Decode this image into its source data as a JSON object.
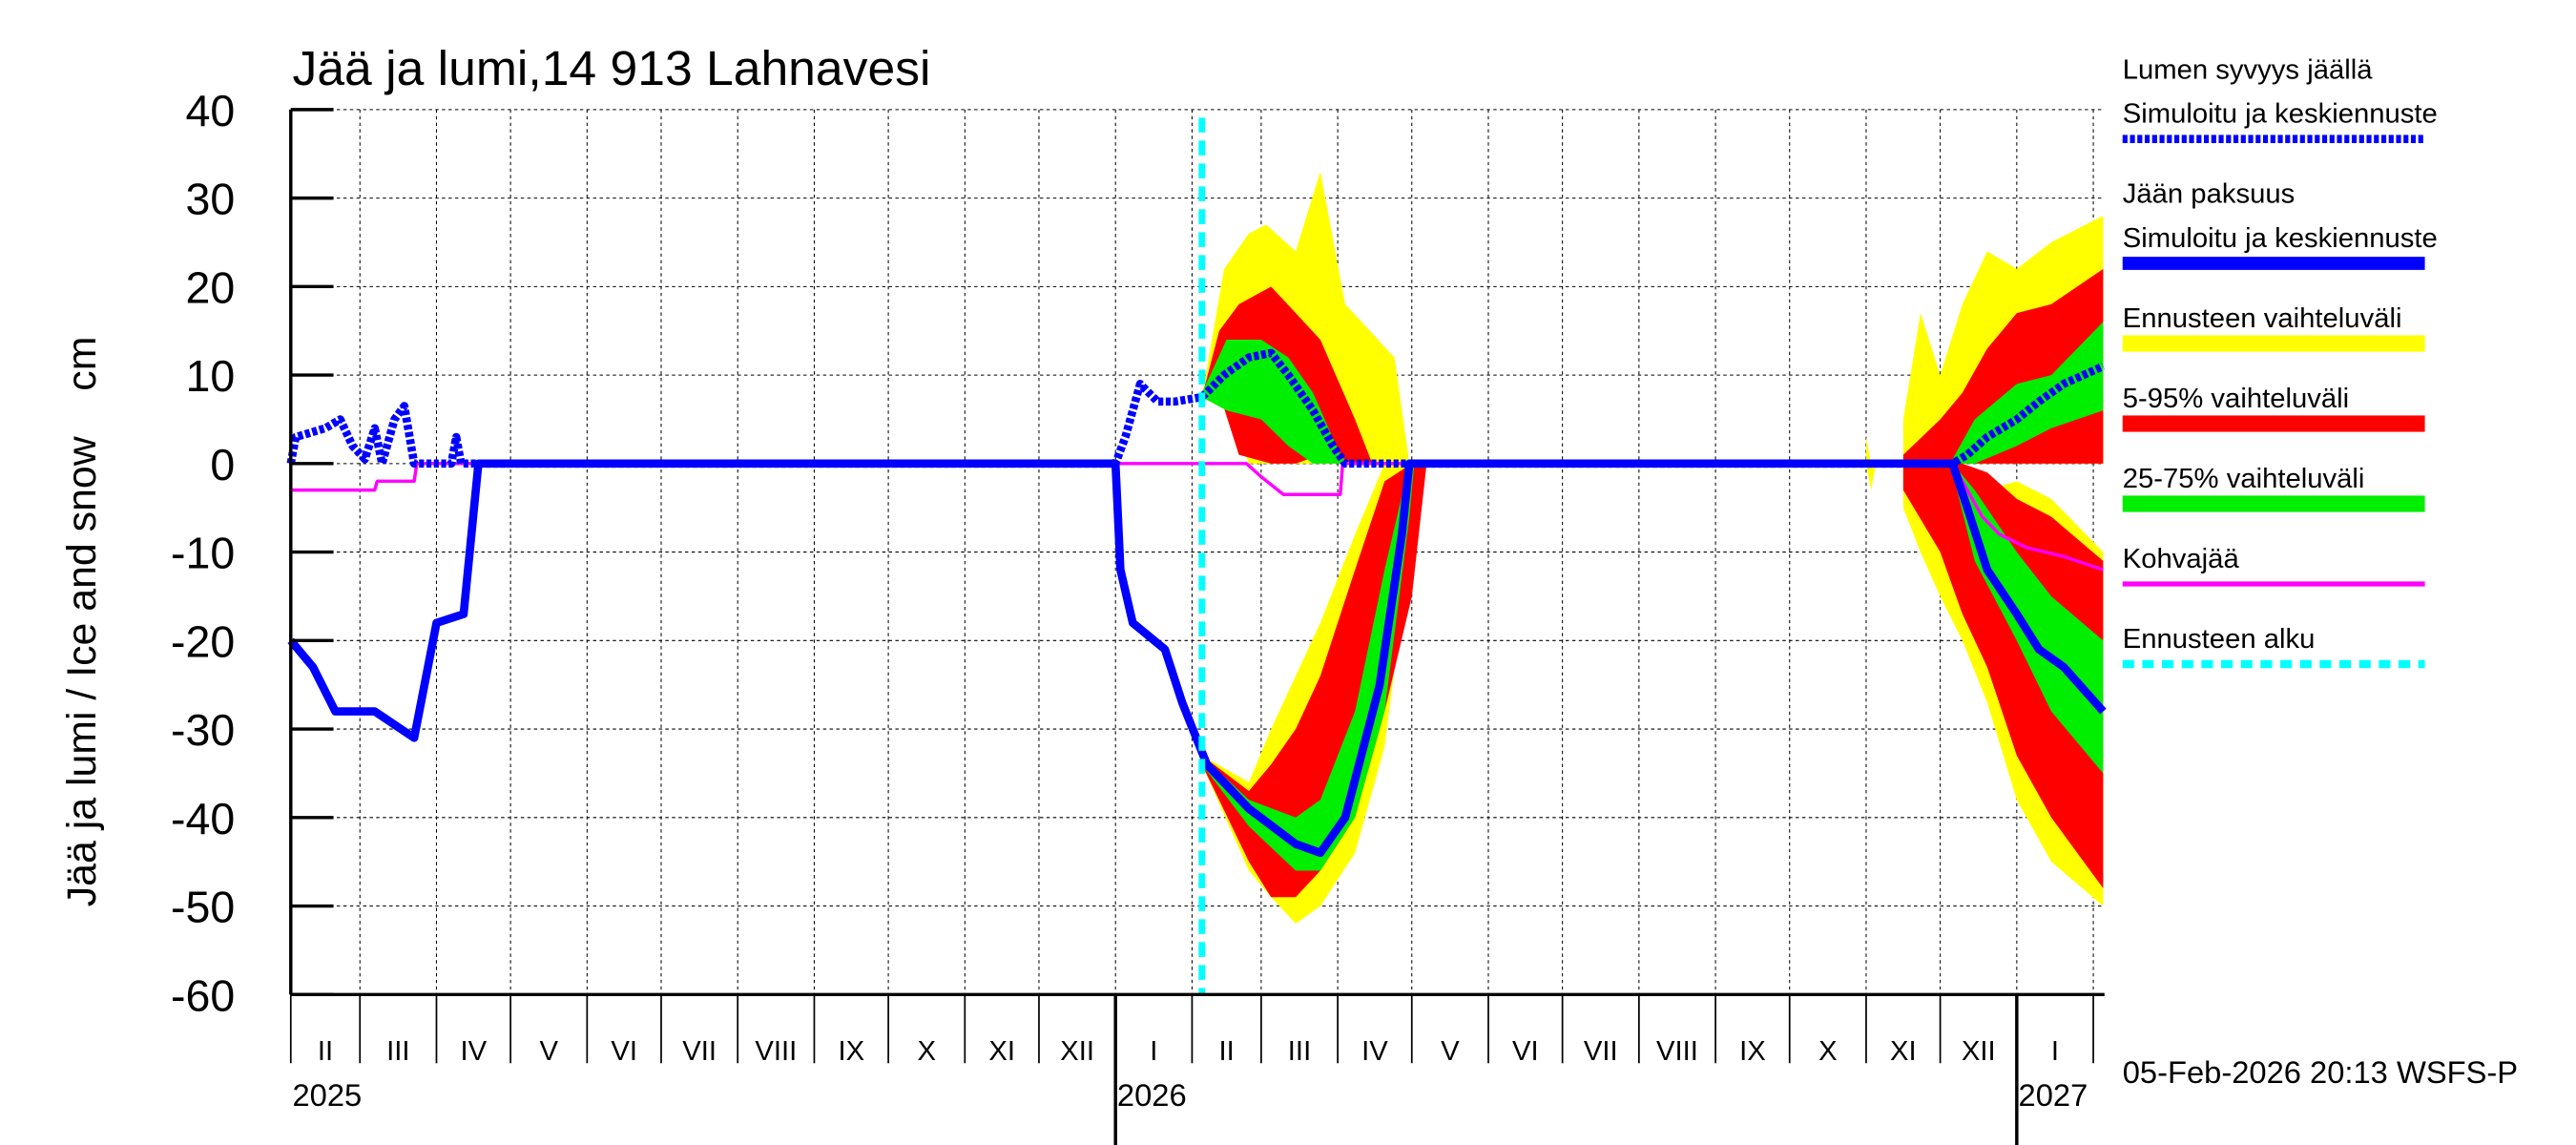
{
  "chart_data": {
    "type": "area",
    "title": "Jää ja lumi,14 913 Lahnavesi",
    "ylabel": "Jää ja lumi / Ice and snow    cm",
    "ylim": [
      -60,
      40
    ],
    "yticks": [
      40,
      30,
      20,
      10,
      0,
      -10,
      -20,
      -30,
      -40,
      -50,
      -60
    ],
    "xlim": [
      "2025-02-01",
      "2027-02-05"
    ],
    "grid": true,
    "legend_placement": "right",
    "month_labels": [
      "II",
      "III",
      "IV",
      "V",
      "VI",
      "VII",
      "VIII",
      "IX",
      "X",
      "XI",
      "XII",
      "I",
      "II",
      "III",
      "IV",
      "V",
      "VI",
      "VII",
      "VIII",
      "IX",
      "X",
      "XI",
      "XII",
      "I"
    ],
    "year_labels": [
      {
        "date": "2025-02-01",
        "label": "2025"
      },
      {
        "date": "2026-01-01",
        "label": "2026"
      },
      {
        "date": "2027-01-01",
        "label": "2027"
      }
    ],
    "forecast_start": "2026-02-05",
    "timestamp": "05-Feb-2026 20:13 WSFS-P",
    "legend": [
      {
        "lines": [
          "Lumen syvyys jäällä",
          "Simuloitu ja keskiennuste"
        ],
        "color": "#0000ff",
        "style": "dotted"
      },
      {
        "lines": [
          "Jään paksuus",
          "Simuloitu ja keskiennuste"
        ],
        "color": "#0000ff",
        "style": "solid"
      },
      {
        "lines": [
          "Ennusteen vaihteluväli"
        ],
        "color": "#ffff00",
        "style": "band"
      },
      {
        "lines": [
          "5-95% vaihteluväli"
        ],
        "color": "#ff0000",
        "style": "band"
      },
      {
        "lines": [
          "25-75% vaihteluväli"
        ],
        "color": "#00ee00",
        "style": "band"
      },
      {
        "lines": [
          "Kohvajää"
        ],
        "color": "#ff00ff",
        "style": "thin"
      },
      {
        "lines": [
          "Ennusteen alku"
        ],
        "color": "#00ffff",
        "style": "dashed"
      }
    ],
    "bands": [
      {
        "name": "Ennusteen vaihteluväli",
        "color": "#ffff00",
        "segments": [
          [
            [
              "2026-02-05",
              7.5,
              7.5
            ],
            [
              "2026-02-14",
              8,
              22
            ],
            [
              "2026-02-24",
              0,
              26
            ],
            [
              "2026-03-03",
              0,
              27
            ],
            [
              "2026-03-15",
              0,
              24
            ],
            [
              "2026-03-25",
              0,
              33
            ],
            [
              "2026-04-04",
              0,
              18
            ],
            [
              "2026-04-24",
              0,
              12
            ],
            [
              "2026-04-30",
              0,
              0
            ]
          ],
          [
            [
              "2026-02-05",
              -33,
              -34
            ],
            [
              "2026-02-24",
              -36,
              -46
            ],
            [
              "2026-03-05",
              -30,
              -49
            ],
            [
              "2026-03-15",
              -24,
              -52
            ],
            [
              "2026-03-25",
              -18,
              -50
            ],
            [
              "2026-04-08",
              -8,
              -44
            ],
            [
              "2026-04-20",
              0,
              -32
            ],
            [
              "2026-04-30",
              0,
              -10
            ],
            [
              "2026-05-05",
              0,
              0
            ]
          ],
          [
            [
              "2026-11-01",
              0,
              3
            ],
            [
              "2026-11-03",
              0,
              -3
            ],
            [
              "2026-11-05",
              0,
              0
            ]
          ],
          [
            [
              "2026-11-16",
              0,
              5
            ],
            [
              "2026-11-23",
              0,
              17
            ],
            [
              "2026-12-01",
              0,
              10
            ],
            [
              "2026-12-10",
              0,
              18
            ],
            [
              "2026-12-20",
              0,
              24
            ],
            [
              "2027-01-01",
              0,
              22
            ],
            [
              "2027-01-15",
              0,
              25
            ],
            [
              "2027-02-05",
              0,
              28
            ]
          ],
          [
            [
              "2026-11-16",
              0,
              -5
            ],
            [
              "2026-11-23",
              0,
              -10
            ],
            [
              "2026-12-01",
              0,
              -15
            ],
            [
              "2026-12-10",
              0,
              -20
            ],
            [
              "2026-12-20",
              -3,
              -27
            ],
            [
              "2027-01-01",
              -2,
              -38
            ],
            [
              "2027-01-15",
              -4,
              -45
            ],
            [
              "2027-02-05",
              -10,
              -50
            ]
          ]
        ]
      },
      {
        "name": "5-95% vaihteluväli",
        "color": "#ff0000",
        "segments": [
          [
            [
              "2026-02-05",
              7.5,
              7.5
            ],
            [
              "2026-02-12",
              8,
              15
            ],
            [
              "2026-02-20",
              1,
              18
            ],
            [
              "2026-03-05",
              0,
              20
            ],
            [
              "2026-03-15",
              0,
              17
            ],
            [
              "2026-03-25",
              1,
              14
            ],
            [
              "2026-04-08",
              0,
              5
            ],
            [
              "2026-04-15",
              0,
              0
            ]
          ],
          [
            [
              "2026-02-05",
              -33,
              -34
            ],
            [
              "2026-02-24",
              -37,
              -45
            ],
            [
              "2026-03-05",
              -34,
              -49
            ],
            [
              "2026-03-15",
              -30,
              -49
            ],
            [
              "2026-03-25",
              -24,
              -46
            ],
            [
              "2026-04-08",
              -12,
              -40
            ],
            [
              "2026-04-20",
              -2,
              -28
            ],
            [
              "2026-05-01",
              0,
              -15
            ],
            [
              "2026-05-07",
              0,
              0
            ]
          ],
          [
            [
              "2026-11-16",
              0,
              1
            ],
            [
              "2026-12-01",
              0,
              5
            ],
            [
              "2026-12-10",
              0,
              8
            ],
            [
              "2026-12-20",
              0,
              13
            ],
            [
              "2027-01-01",
              0,
              17
            ],
            [
              "2027-01-15",
              0,
              18
            ],
            [
              "2027-02-05",
              0,
              22
            ]
          ],
          [
            [
              "2026-11-16",
              0,
              -3
            ],
            [
              "2026-12-01",
              0,
              -10
            ],
            [
              "2026-12-10",
              0,
              -17
            ],
            [
              "2026-12-20",
              -1,
              -23
            ],
            [
              "2027-01-01",
              -4,
              -33
            ],
            [
              "2027-01-15",
              -6,
              -40
            ],
            [
              "2027-02-05",
              -11,
              -48
            ]
          ]
        ]
      },
      {
        "name": "25-75% vaihteluväli",
        "color": "#00ee00",
        "segments": [
          [
            [
              "2026-02-05",
              7.5,
              8
            ],
            [
              "2026-02-15",
              6,
              14
            ],
            [
              "2026-03-01",
              5,
              14
            ],
            [
              "2026-03-12",
              2,
              12
            ],
            [
              "2026-03-22",
              0,
              8
            ],
            [
              "2026-04-02",
              0,
              1
            ],
            [
              "2026-04-05",
              0,
              0
            ]
          ],
          [
            [
              "2026-02-05",
              -33,
              -34
            ],
            [
              "2026-02-24",
              -38,
              -41
            ],
            [
              "2026-03-15",
              -40,
              -46
            ],
            [
              "2026-03-25",
              -38,
              -46
            ],
            [
              "2026-04-08",
              -28,
              -40
            ],
            [
              "2026-04-20",
              -12,
              -28
            ],
            [
              "2026-04-30",
              0,
              -6
            ],
            [
              "2026-05-02",
              0,
              0
            ]
          ],
          [
            [
              "2026-12-06",
              0,
              0.5
            ],
            [
              "2026-12-15",
              0,
              5
            ],
            [
              "2027-01-01",
              2,
              9
            ],
            [
              "2027-01-15",
              4,
              10
            ],
            [
              "2027-02-05",
              6,
              16
            ]
          ],
          [
            [
              "2026-12-06",
              0,
              -1
            ],
            [
              "2026-12-15",
              -3,
              -11
            ],
            [
              "2027-01-01",
              -10,
              -20
            ],
            [
              "2027-01-15",
              -15,
              -28
            ],
            [
              "2027-02-05",
              -20,
              -35
            ]
          ]
        ]
      }
    ],
    "series": [
      {
        "name": "Lumen syvyys jäällä",
        "color": "#0000ff",
        "style": "dotted",
        "segments": [
          [
            [
              "2025-02-01",
              0
            ],
            [
              "2025-02-03",
              3
            ],
            [
              "2025-02-15",
              4
            ],
            [
              "2025-02-21",
              5
            ],
            [
              "2025-02-26",
              2
            ],
            [
              "2025-03-03",
              0.5
            ],
            [
              "2025-03-07",
              4
            ],
            [
              "2025-03-10",
              0
            ],
            [
              "2025-03-15",
              5
            ],
            [
              "2025-03-19",
              6.5
            ],
            [
              "2025-03-23",
              0
            ],
            [
              "2025-04-07",
              0
            ],
            [
              "2025-04-09",
              3
            ],
            [
              "2025-04-11",
              0
            ],
            [
              "2025-12-31",
              0
            ],
            [
              "2026-01-01",
              0
            ],
            [
              "2026-01-05",
              3
            ],
            [
              "2026-01-11",
              9
            ],
            [
              "2026-01-18",
              7
            ],
            [
              "2026-01-25",
              7
            ],
            [
              "2026-02-05",
              7.5
            ],
            [
              "2026-02-14",
              10
            ],
            [
              "2026-02-24",
              12
            ],
            [
              "2026-03-05",
              12.5
            ],
            [
              "2026-03-12",
              10
            ],
            [
              "2026-03-22",
              6
            ],
            [
              "2026-03-30",
              2
            ],
            [
              "2026-04-04",
              0
            ],
            [
              "2026-12-06",
              0
            ],
            [
              "2026-12-12",
              1
            ],
            [
              "2026-12-20",
              3
            ],
            [
              "2027-01-01",
              5
            ],
            [
              "2027-01-10",
              7
            ],
            [
              "2027-01-20",
              9
            ],
            [
              "2027-02-05",
              11
            ]
          ]
        ]
      },
      {
        "name": "Jään paksuus",
        "color": "#0000ff",
        "style": "solid",
        "segments": [
          [
            [
              "2025-02-01",
              -20
            ],
            [
              "2025-02-10",
              -23
            ],
            [
              "2025-02-19",
              -28
            ],
            [
              "2025-03-07",
              -28
            ],
            [
              "2025-03-23",
              -31
            ],
            [
              "2025-04-01",
              -18
            ],
            [
              "2025-04-12",
              -17
            ],
            [
              "2025-04-18",
              0
            ],
            [
              "2026-01-01",
              0
            ],
            [
              "2026-01-03",
              -12
            ],
            [
              "2026-01-08",
              -18
            ],
            [
              "2026-01-21",
              -21
            ],
            [
              "2026-01-28",
              -27
            ],
            [
              "2026-02-07",
              -34
            ],
            [
              "2026-02-24",
              -39
            ],
            [
              "2026-03-15",
              -43
            ],
            [
              "2026-03-25",
              -44
            ],
            [
              "2026-04-04",
              -40
            ],
            [
              "2026-04-18",
              -25
            ],
            [
              "2026-04-27",
              -8
            ],
            [
              "2026-04-30",
              0
            ],
            [
              "2026-12-06",
              0
            ],
            [
              "2026-12-12",
              -5
            ],
            [
              "2026-12-20",
              -12
            ],
            [
              "2027-01-01",
              -17
            ],
            [
              "2027-01-10",
              -21
            ],
            [
              "2027-01-20",
              -23
            ],
            [
              "2027-02-05",
              -28
            ]
          ]
        ]
      },
      {
        "name": "Kohvajää",
        "color": "#ff00ff",
        "style": "thin",
        "segments": [
          [
            [
              "2025-02-01",
              -3
            ],
            [
              "2025-03-07",
              -3
            ],
            [
              "2025-03-08",
              -2
            ],
            [
              "2025-03-23",
              -2
            ],
            [
              "2025-03-24",
              0
            ],
            [
              "2026-02-23",
              0
            ],
            [
              "2026-03-01",
              -1.5
            ],
            [
              "2026-03-10",
              -3.5
            ],
            [
              "2026-04-02",
              -3.5
            ],
            [
              "2026-04-03",
              0
            ],
            [
              "2026-12-06",
              0
            ],
            [
              "2026-12-12",
              -3
            ],
            [
              "2026-12-18",
              -6
            ],
            [
              "2026-12-25",
              -8
            ],
            [
              "2027-01-05",
              -9.5
            ],
            [
              "2027-01-20",
              -10.5
            ],
            [
              "2027-02-05",
              -12
            ]
          ]
        ]
      }
    ]
  }
}
